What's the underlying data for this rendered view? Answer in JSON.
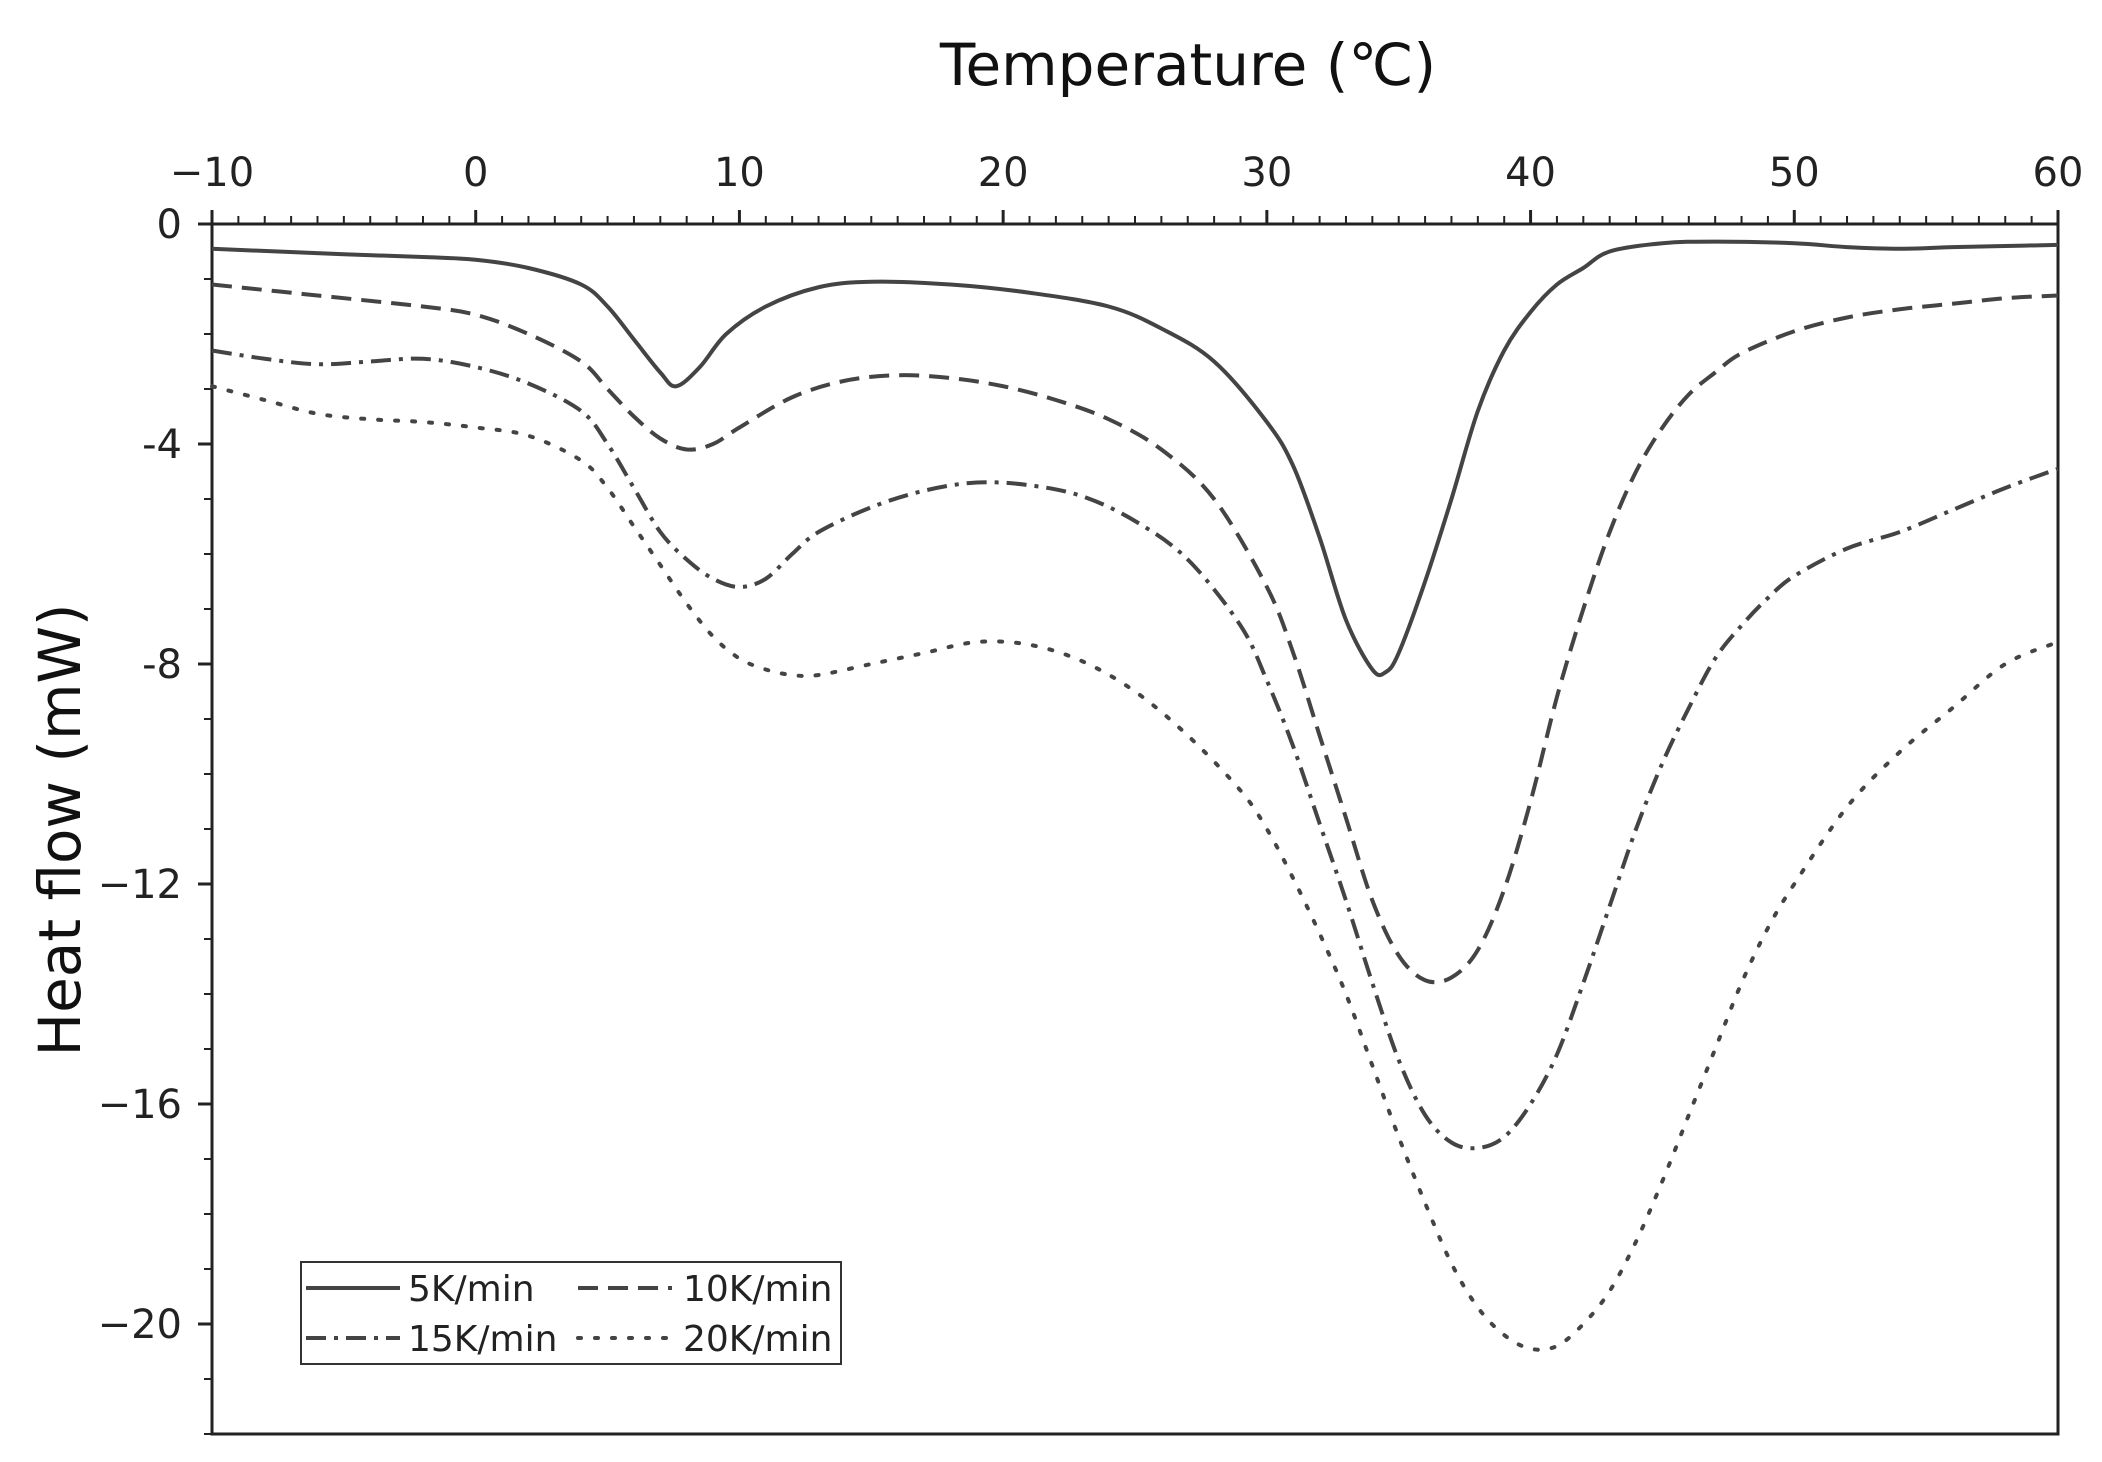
{
  "chart_data": {
    "type": "line",
    "title": "",
    "xlabel": "Temperature (℃)",
    "ylabel": "Heat flow (mW)",
    "xlim": [
      -10,
      60
    ],
    "ylim": [
      -22,
      0
    ],
    "x_ticks": [
      -10,
      0,
      10,
      20,
      30,
      40,
      50,
      60
    ],
    "x_tick_labels": [
      "−10",
      "0",
      "10",
      "20",
      "30",
      "40",
      "50",
      "60"
    ],
    "y_ticks": [
      0,
      -4,
      -8,
      -12,
      -16,
      -20
    ],
    "y_tick_labels": [
      "0",
      "-4",
      "-8",
      "−12",
      "−16",
      "−20"
    ],
    "x_axis_position": "top",
    "grid": false,
    "legend_position": "bottom-left",
    "series": [
      {
        "name": "5K/min",
        "color": "#444444",
        "dash": "solid",
        "points": [
          [
            -10,
            -0.45
          ],
          [
            -5,
            -0.55
          ],
          [
            -2,
            -0.6
          ],
          [
            0,
            -0.65
          ],
          [
            2,
            -0.8
          ],
          [
            4,
            -1.1
          ],
          [
            5,
            -1.5
          ],
          [
            6,
            -2.1
          ],
          [
            7,
            -2.7
          ],
          [
            7.6,
            -2.95
          ],
          [
            8.5,
            -2.6
          ],
          [
            9.5,
            -2.0
          ],
          [
            11,
            -1.5
          ],
          [
            13,
            -1.15
          ],
          [
            15,
            -1.05
          ],
          [
            18,
            -1.1
          ],
          [
            21,
            -1.25
          ],
          [
            24,
            -1.5
          ],
          [
            26,
            -1.9
          ],
          [
            28,
            -2.5
          ],
          [
            30,
            -3.6
          ],
          [
            31,
            -4.4
          ],
          [
            32,
            -5.7
          ],
          [
            33,
            -7.2
          ],
          [
            34,
            -8.1
          ],
          [
            34.5,
            -8.15
          ],
          [
            35,
            -7.8
          ],
          [
            36,
            -6.5
          ],
          [
            37,
            -5.0
          ],
          [
            38,
            -3.4
          ],
          [
            39,
            -2.3
          ],
          [
            40,
            -1.6
          ],
          [
            41,
            -1.1
          ],
          [
            42,
            -0.8
          ],
          [
            43,
            -0.5
          ],
          [
            45,
            -0.35
          ],
          [
            47,
            -0.32
          ],
          [
            50,
            -0.35
          ],
          [
            52,
            -0.42
          ],
          [
            54,
            -0.45
          ],
          [
            56,
            -0.42
          ],
          [
            58,
            -0.4
          ],
          [
            60,
            -0.38
          ]
        ]
      },
      {
        "name": "10K/min",
        "color": "#444444",
        "dash": "dashed",
        "points": [
          [
            -10,
            -1.1
          ],
          [
            -6,
            -1.3
          ],
          [
            -2,
            -1.5
          ],
          [
            0,
            -1.65
          ],
          [
            2,
            -2.0
          ],
          [
            4,
            -2.5
          ],
          [
            5,
            -3.0
          ],
          [
            6,
            -3.5
          ],
          [
            7,
            -3.9
          ],
          [
            8,
            -4.1
          ],
          [
            9,
            -4.0
          ],
          [
            10,
            -3.7
          ],
          [
            12,
            -3.15
          ],
          [
            14,
            -2.85
          ],
          [
            16,
            -2.75
          ],
          [
            18,
            -2.8
          ],
          [
            20,
            -2.95
          ],
          [
            22,
            -3.2
          ],
          [
            24,
            -3.55
          ],
          [
            26,
            -4.1
          ],
          [
            28,
            -5.0
          ],
          [
            30,
            -6.6
          ],
          [
            31,
            -7.8
          ],
          [
            32,
            -9.3
          ],
          [
            33,
            -10.8
          ],
          [
            34,
            -12.3
          ],
          [
            35,
            -13.3
          ],
          [
            36,
            -13.75
          ],
          [
            37,
            -13.7
          ],
          [
            38,
            -13.2
          ],
          [
            39,
            -12.1
          ],
          [
            40,
            -10.5
          ],
          [
            41,
            -8.6
          ],
          [
            42,
            -7.0
          ],
          [
            43,
            -5.6
          ],
          [
            44,
            -4.5
          ],
          [
            45,
            -3.7
          ],
          [
            46,
            -3.1
          ],
          [
            47,
            -2.7
          ],
          [
            48,
            -2.35
          ],
          [
            50,
            -1.95
          ],
          [
            52,
            -1.7
          ],
          [
            54,
            -1.55
          ],
          [
            56,
            -1.45
          ],
          [
            58,
            -1.35
          ],
          [
            60,
            -1.3
          ]
        ]
      },
      {
        "name": "15K/min",
        "color": "#444444",
        "dash": "dashdot",
        "points": [
          [
            -10,
            -2.3
          ],
          [
            -8,
            -2.45
          ],
          [
            -6,
            -2.55
          ],
          [
            -4,
            -2.5
          ],
          [
            -2,
            -2.45
          ],
          [
            0,
            -2.6
          ],
          [
            2,
            -2.9
          ],
          [
            4,
            -3.4
          ],
          [
            5,
            -4.0
          ],
          [
            6,
            -4.8
          ],
          [
            7,
            -5.6
          ],
          [
            8,
            -6.1
          ],
          [
            9,
            -6.45
          ],
          [
            10,
            -6.6
          ],
          [
            11,
            -6.45
          ],
          [
            12,
            -6.0
          ],
          [
            13,
            -5.6
          ],
          [
            15,
            -5.15
          ],
          [
            17,
            -4.85
          ],
          [
            19,
            -4.7
          ],
          [
            21,
            -4.75
          ],
          [
            23,
            -4.95
          ],
          [
            25,
            -5.4
          ],
          [
            27,
            -6.1
          ],
          [
            29,
            -7.3
          ],
          [
            30,
            -8.3
          ],
          [
            31,
            -9.5
          ],
          [
            32,
            -10.9
          ],
          [
            33,
            -12.3
          ],
          [
            34,
            -13.8
          ],
          [
            35,
            -15.2
          ],
          [
            36,
            -16.2
          ],
          [
            37,
            -16.7
          ],
          [
            38,
            -16.8
          ],
          [
            39,
            -16.6
          ],
          [
            40,
            -16.0
          ],
          [
            41,
            -15.1
          ],
          [
            42,
            -13.8
          ],
          [
            43,
            -12.4
          ],
          [
            44,
            -11.0
          ],
          [
            45,
            -9.8
          ],
          [
            46,
            -8.8
          ],
          [
            47,
            -7.9
          ],
          [
            48,
            -7.3
          ],
          [
            49,
            -6.8
          ],
          [
            50,
            -6.4
          ],
          [
            52,
            -5.9
          ],
          [
            54,
            -5.6
          ],
          [
            56,
            -5.2
          ],
          [
            58,
            -4.8
          ],
          [
            60,
            -4.45
          ]
        ]
      },
      {
        "name": "20K/min",
        "color": "#444444",
        "dash": "dotted",
        "points": [
          [
            -10,
            -2.95
          ],
          [
            -8,
            -3.2
          ],
          [
            -6,
            -3.45
          ],
          [
            -4,
            -3.55
          ],
          [
            -2,
            -3.6
          ],
          [
            0,
            -3.7
          ],
          [
            2,
            -3.85
          ],
          [
            4,
            -4.3
          ],
          [
            5,
            -4.8
          ],
          [
            6,
            -5.5
          ],
          [
            7,
            -6.2
          ],
          [
            8,
            -6.9
          ],
          [
            9,
            -7.5
          ],
          [
            10,
            -7.9
          ],
          [
            11,
            -8.1
          ],
          [
            12,
            -8.2
          ],
          [
            13,
            -8.2
          ],
          [
            15,
            -8.0
          ],
          [
            17,
            -7.8
          ],
          [
            19,
            -7.6
          ],
          [
            21,
            -7.65
          ],
          [
            23,
            -7.95
          ],
          [
            25,
            -8.5
          ],
          [
            27,
            -9.3
          ],
          [
            29,
            -10.3
          ],
          [
            30,
            -11.0
          ],
          [
            31,
            -11.9
          ],
          [
            32,
            -12.9
          ],
          [
            33,
            -14.0
          ],
          [
            34,
            -15.3
          ],
          [
            35,
            -16.6
          ],
          [
            36,
            -17.8
          ],
          [
            37,
            -18.9
          ],
          [
            38,
            -19.7
          ],
          [
            39,
            -20.2
          ],
          [
            40,
            -20.45
          ],
          [
            41,
            -20.4
          ],
          [
            42,
            -20.0
          ],
          [
            43,
            -19.4
          ],
          [
            44,
            -18.5
          ],
          [
            45,
            -17.4
          ],
          [
            46,
            -16.2
          ],
          [
            47,
            -15.0
          ],
          [
            48,
            -13.8
          ],
          [
            49,
            -12.8
          ],
          [
            50,
            -12.0
          ],
          [
            52,
            -10.6
          ],
          [
            54,
            -9.6
          ],
          [
            56,
            -8.8
          ],
          [
            58,
            -8.0
          ],
          [
            60,
            -7.6
          ]
        ]
      }
    ]
  }
}
